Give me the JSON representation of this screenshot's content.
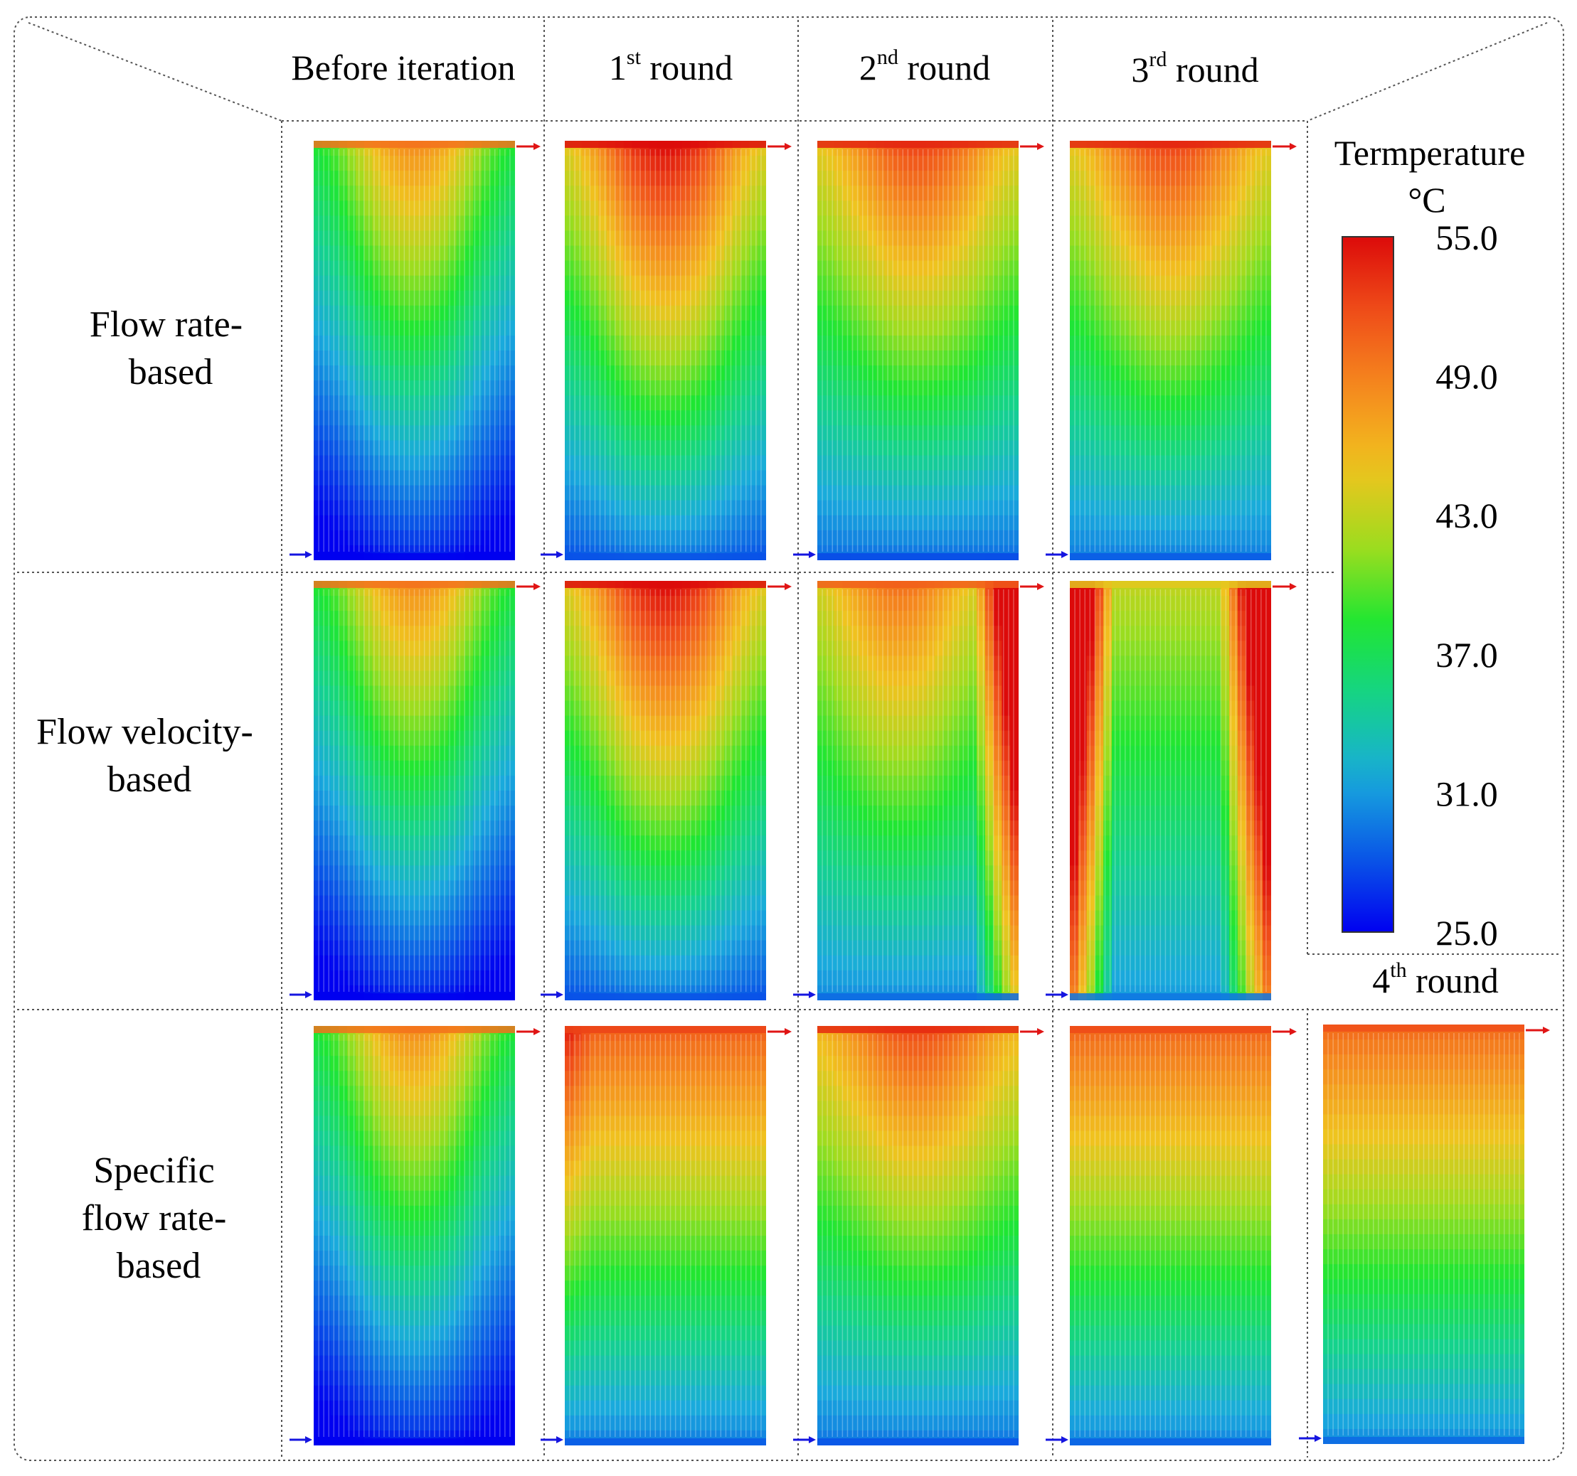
{
  "column_headers": [
    {
      "base": "Before iteration",
      "sup": "",
      "rest": ""
    },
    {
      "base": "1",
      "sup": "st",
      "rest": " round"
    },
    {
      "base": "2",
      "sup": "nd",
      "rest": " round"
    },
    {
      "base": "3",
      "sup": "rd",
      "rest": " round"
    },
    {
      "base": "4",
      "sup": "th",
      "rest": " round"
    }
  ],
  "row_labels": [
    {
      "lines": [
        "Flow rate-",
        "based"
      ]
    },
    {
      "lines": [
        "Flow velocity-",
        "based"
      ]
    },
    {
      "lines": [
        "Specific",
        "flow rate-",
        "based"
      ]
    }
  ],
  "legend": {
    "title_line1": "Termperature",
    "title_line2": "°C",
    "ticks": [
      "55.0",
      "49.0",
      "43.0",
      "37.0",
      "31.0",
      "25.0"
    ],
    "min": 25.0,
    "max": 55.0
  },
  "colors": {
    "inlet_arrow": "#1515e0",
    "outlet_arrow": "#e01515",
    "grid_line": "#555555",
    "colormap": [
      "#0000f0",
      "#0a5ae6",
      "#19aadc",
      "#14d28c",
      "#1ee632",
      "#a0dc1e",
      "#f0c31e",
      "#f58c1e",
      "#f0501a",
      "#dc0a0a"
    ]
  },
  "panels": [
    {
      "row": 0,
      "col": 0,
      "profile": "bowl_before"
    },
    {
      "row": 0,
      "col": 1,
      "profile": "bowl_r1"
    },
    {
      "row": 0,
      "col": 2,
      "profile": "bowl_r2"
    },
    {
      "row": 0,
      "col": 3,
      "profile": "bowl_r3"
    },
    {
      "row": 1,
      "col": 0,
      "profile": "bowl_before"
    },
    {
      "row": 1,
      "col": 1,
      "profile": "bowl_r1"
    },
    {
      "row": 1,
      "col": 2,
      "profile": "flank_v2"
    },
    {
      "row": 1,
      "col": 3,
      "profile": "flank_v3"
    },
    {
      "row": 2,
      "col": 0,
      "profile": "bowl_before"
    },
    {
      "row": 2,
      "col": 1,
      "profile": "spec_r1"
    },
    {
      "row": 2,
      "col": 2,
      "profile": "spec_r2"
    },
    {
      "row": 2,
      "col": 3,
      "profile": "spec_r3"
    },
    {
      "row": 2,
      "col": 4,
      "profile": "spec_r4"
    }
  ]
}
